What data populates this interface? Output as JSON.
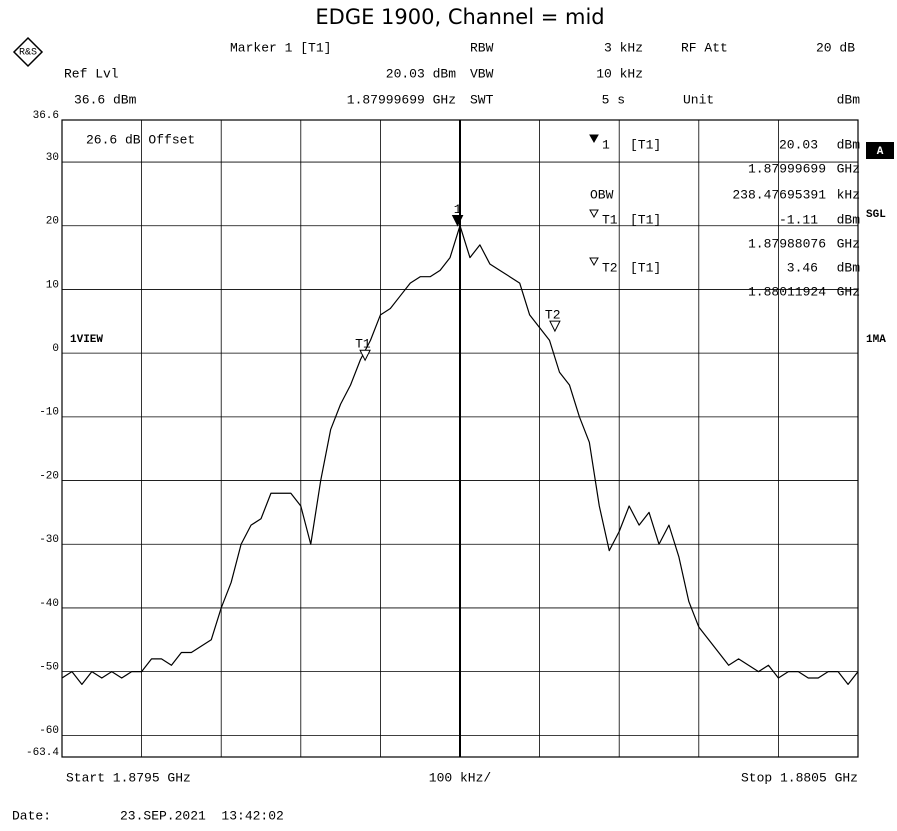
{
  "header": {
    "marker": "Marker 1 [T1]",
    "ref_lvl": "Ref Lvl",
    "ref_value": "36.6 dBm",
    "marker_level": "20.03 dBm",
    "marker_freq": "1.87999699 GHz",
    "rbw": "RBW",
    "rbw_value": "3 kHz",
    "vbw": "VBW",
    "vbw_value": "10 kHz",
    "swt": "SWT",
    "swt_value": "5 s",
    "rf_att": "RF Att",
    "rf_att_value": "20 dB",
    "unit": "Unit",
    "unit_value": "dBm"
  },
  "display": {
    "offset": "26.6 dB Offset",
    "view": "1VIEW",
    "trace_mode": "1MA",
    "a": "A",
    "sgl": "SGL"
  },
  "chart_data": {
    "type": "line",
    "title": "EDGE 1900, Channel = mid",
    "xlim": [
      1.8795,
      1.8805
    ],
    "ylim": [
      -63.4,
      36.6
    ],
    "xticks": [
      1.8795,
      1.8796,
      1.8797,
      1.8798,
      1.8799,
      1.88,
      1.8801,
      1.8802,
      1.8803,
      1.8804,
      1.8805
    ],
    "yticks": [
      -63.4,
      -60,
      -50,
      -40,
      -30,
      -20,
      -10,
      0,
      10,
      20,
      30,
      36.6
    ],
    "grid": true,
    "x": [
      1.8795,
      1.8795125,
      1.879525,
      1.8795375,
      1.87955,
      1.8795625,
      1.879575,
      1.8795875,
      1.8796,
      1.8796125,
      1.879625,
      1.8796375,
      1.87965,
      1.8796625,
      1.879675,
      1.8796875,
      1.8797,
      1.8797125,
      1.879725,
      1.8797375,
      1.87975,
      1.8797625,
      1.879775,
      1.8797875,
      1.8798,
      1.8798125,
      1.879825,
      1.8798375,
      1.87985,
      1.8798625,
      1.879875,
      1.8798875,
      1.8799,
      1.8799125,
      1.879925,
      1.8799375,
      1.87995,
      1.8799625,
      1.879975,
      1.8799875,
      1.88,
      1.8800125,
      1.880025,
      1.8800375,
      1.88005,
      1.8800625,
      1.880075,
      1.8800875,
      1.8801,
      1.8801125,
      1.880125,
      1.8801375,
      1.88015,
      1.8801625,
      1.880175,
      1.8801875,
      1.8802,
      1.8802125,
      1.880225,
      1.8802375,
      1.88025,
      1.8802625,
      1.880275,
      1.8802875,
      1.8803,
      1.8803125,
      1.880325,
      1.8803375,
      1.88035,
      1.8803625,
      1.880375,
      1.8803875,
      1.8804,
      1.8804125,
      1.880425,
      1.8804375,
      1.88045,
      1.8804625,
      1.880475,
      1.8804875,
      1.8805
    ],
    "series": [
      {
        "color": "#000000",
        "values": [
          -51,
          -50,
          -52,
          -50,
          -51,
          -50,
          -51,
          -50,
          -50,
          -48,
          -48,
          -49,
          -47,
          -47,
          -46,
          -45,
          -40,
          -36,
          -30,
          -27,
          -26,
          -22,
          -22,
          -22,
          -24,
          -30,
          -20,
          -12,
          -8,
          -5,
          -1,
          2,
          6,
          7,
          9,
          11,
          12,
          12,
          13,
          15,
          20,
          15,
          17,
          14,
          13,
          12,
          11,
          6,
          4,
          2,
          -3,
          -5,
          -10,
          -14,
          -24,
          -31,
          -28,
          -24,
          -27,
          -25,
          -30,
          -27,
          -32,
          -39,
          -43,
          -45,
          -47,
          -49,
          -48,
          -49,
          -50,
          -49,
          -51,
          -50,
          -50,
          -51,
          -51,
          -50,
          -50,
          -52,
          -50
        ]
      }
    ],
    "markers": [
      {
        "symbol": "1",
        "name": "[T1]",
        "x": 1.87999699,
        "value": 20.03,
        "unit": "dBm",
        "x_unit": "GHz"
      },
      {
        "symbol": "T1",
        "name": "[T1]",
        "x": 1.87988076,
        "value": -1.11,
        "unit": "dBm",
        "x_unit": "GHz"
      },
      {
        "symbol": "T2",
        "name": "[T1]",
        "x": 1.88011924,
        "value": 3.46,
        "unit": "dBm",
        "x_unit": "GHz"
      }
    ],
    "obw": {
      "label": "OBW",
      "value": 238.47695391,
      "unit": "kHz"
    }
  },
  "footer": {
    "start": "Start 1.8795 GHz",
    "span": "100 kHz/",
    "stop": "Stop 1.8805 GHz",
    "date_label": "Date:",
    "date": "23.SEP.2021  13:42:02"
  }
}
